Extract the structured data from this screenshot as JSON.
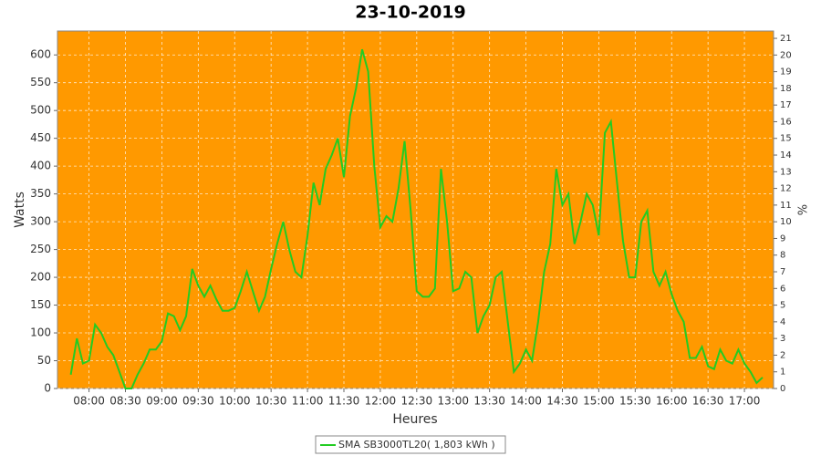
{
  "chart_data": {
    "type": "line",
    "title": "23-10-2019",
    "x_label": "Heures",
    "y_label": "Watts",
    "y2_label": "%",
    "background": "#ff9900",
    "grid": true,
    "xlim": [
      "07:34",
      "17:24"
    ],
    "xticks": [
      "08:00",
      "08:30",
      "09:00",
      "09:30",
      "10:00",
      "10:30",
      "11:00",
      "11:30",
      "12:00",
      "12:30",
      "13:00",
      "13:30",
      "14:00",
      "14:30",
      "15:00",
      "15:30",
      "16:00",
      "16:30",
      "17:00"
    ],
    "ylim": [
      0,
      643
    ],
    "yticks": [
      0,
      50,
      100,
      150,
      200,
      250,
      300,
      350,
      400,
      450,
      500,
      550,
      600
    ],
    "y2lim": [
      0,
      21.44
    ],
    "y2ticks": [
      0,
      1,
      2,
      3,
      4,
      5,
      6,
      7,
      8,
      9,
      10,
      11,
      12,
      13,
      14,
      15,
      16,
      17,
      18,
      19,
      20,
      21
    ],
    "x": [
      "07:45",
      "07:50",
      "07:55",
      "08:00",
      "08:05",
      "08:10",
      "08:15",
      "08:20",
      "08:25",
      "08:30",
      "08:35",
      "08:40",
      "08:45",
      "08:50",
      "08:55",
      "09:00",
      "09:05",
      "09:10",
      "09:15",
      "09:20",
      "09:25",
      "09:30",
      "09:35",
      "09:40",
      "09:45",
      "09:50",
      "09:55",
      "10:00",
      "10:05",
      "10:10",
      "10:15",
      "10:20",
      "10:25",
      "10:30",
      "10:35",
      "10:40",
      "10:45",
      "10:50",
      "10:55",
      "11:00",
      "11:05",
      "11:10",
      "11:15",
      "11:20",
      "11:25",
      "11:30",
      "11:35",
      "11:40",
      "11:45",
      "11:50",
      "11:55",
      "12:00",
      "12:05",
      "12:10",
      "12:15",
      "12:20",
      "12:25",
      "12:30",
      "12:35",
      "12:40",
      "12:45",
      "12:50",
      "12:55",
      "13:00",
      "13:05",
      "13:10",
      "13:15",
      "13:20",
      "13:25",
      "13:30",
      "13:35",
      "13:40",
      "13:45",
      "13:50",
      "13:55",
      "14:00",
      "14:05",
      "14:10",
      "14:15",
      "14:20",
      "14:25",
      "14:30",
      "14:35",
      "14:40",
      "14:45",
      "14:50",
      "14:55",
      "15:00",
      "15:05",
      "15:10",
      "15:15",
      "15:20",
      "15:25",
      "15:30",
      "15:35",
      "15:40",
      "15:45",
      "15:50",
      "15:55",
      "16:00",
      "16:05",
      "16:10",
      "16:15",
      "16:20",
      "16:25",
      "16:30",
      "16:35",
      "16:40",
      "16:45",
      "16:50",
      "16:55",
      "17:00",
      "17:05",
      "17:10",
      "17:15"
    ],
    "series": [
      {
        "name": "SMA SB3000TL20( 1,803 kWh )",
        "color": "#22cc22",
        "values": [
          25,
          90,
          45,
          50,
          115,
          100,
          75,
          60,
          30,
          0,
          0,
          25,
          45,
          70,
          70,
          85,
          135,
          130,
          105,
          130,
          215,
          185,
          165,
          185,
          160,
          140,
          140,
          145,
          175,
          210,
          175,
          140,
          165,
          215,
          260,
          300,
          250,
          210,
          200,
          275,
          370,
          330,
          395,
          420,
          450,
          380,
          490,
          540,
          610,
          570,
          400,
          290,
          310,
          300,
          360,
          445,
          320,
          175,
          165,
          165,
          180,
          395,
          300,
          175,
          180,
          210,
          200,
          100,
          130,
          150,
          200,
          210,
          120,
          30,
          45,
          70,
          50,
          120,
          210,
          260,
          395,
          330,
          350,
          260,
          300,
          350,
          330,
          275,
          460,
          480,
          370,
          265,
          200,
          200,
          300,
          320,
          210,
          185,
          210,
          170,
          140,
          120,
          55,
          55,
          75,
          40,
          35,
          70,
          50,
          45,
          70,
          45,
          30,
          10,
          20
        ]
      }
    ]
  }
}
